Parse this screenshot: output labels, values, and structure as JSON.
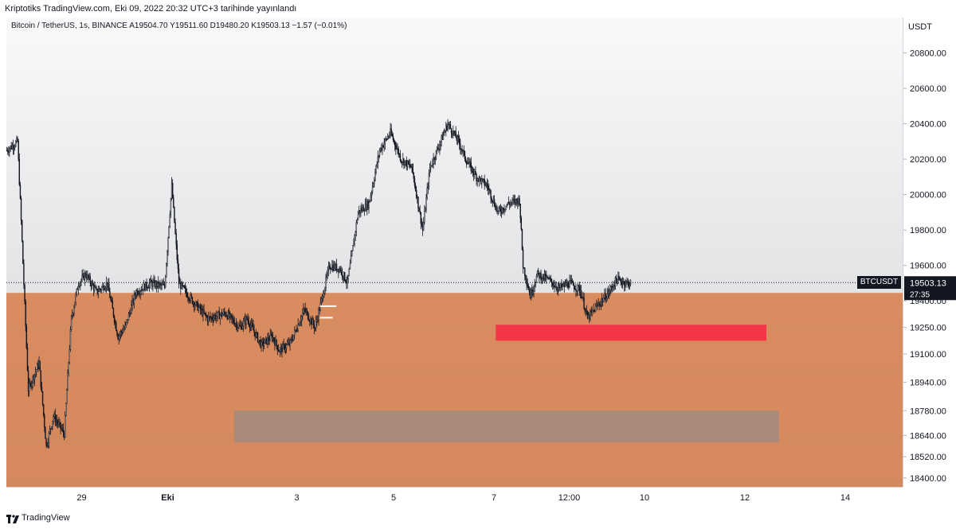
{
  "header": {
    "published_line": "Kriptotiks TradingView.com, Eki 09, 2022 20:32 UTC+3 tarihinde yayınlandı"
  },
  "legend": {
    "line": "Bitcoin / TetherUS, 1s, BINANCE  A19504.70  Y19511.60  D19480.20  K19503.13  −1.57 (−0.01%)"
  },
  "footer": {
    "brand": "TradingView"
  },
  "chart_data": {
    "type": "candlestick",
    "symbol_label": "BTCUSDT",
    "currency_label": "USDT",
    "last_price": 19503.13,
    "last_price_label": "19503.13",
    "countdown_label": "27:35",
    "ylim": [
      18350,
      21000
    ],
    "price_ticks": [
      "18400.00",
      "18520.00",
      "18640.00",
      "18780.00",
      "18940.00",
      "19100.00",
      "19250.00",
      "19400.00",
      "19600.00",
      "19800.00",
      "20000.00",
      "20200.00",
      "20400.00",
      "20600.00",
      "20800.00"
    ],
    "time_ticks": [
      {
        "label": "29",
        "index": 21,
        "bold": false
      },
      {
        "label": "Eki",
        "index": 45,
        "bold": true
      },
      {
        "label": "3",
        "index": 81,
        "bold": false
      },
      {
        "label": "5",
        "index": 108,
        "bold": false
      },
      {
        "label": "7",
        "index": 136,
        "bold": false
      },
      {
        "label": "12:00",
        "index": 157,
        "bold": false
      },
      {
        "label": "10",
        "index": 178,
        "bold": false
      },
      {
        "label": "12",
        "index": 206,
        "bold": false
      },
      {
        "label": "14",
        "index": 234,
        "bold": false
      }
    ],
    "x_slots": 250,
    "path_anchors": [
      [
        0,
        20250
      ],
      [
        3,
        20300
      ],
      [
        4,
        19850
      ],
      [
        6,
        18900
      ],
      [
        9,
        19050
      ],
      [
        11,
        18580
      ],
      [
        13,
        18750
      ],
      [
        16,
        18650
      ],
      [
        18,
        19300
      ],
      [
        20,
        19500
      ],
      [
        22,
        19550
      ],
      [
        25,
        19450
      ],
      [
        28,
        19500
      ],
      [
        31,
        19200
      ],
      [
        33,
        19250
      ],
      [
        36,
        19450
      ],
      [
        40,
        19500
      ],
      [
        44,
        19480
      ],
      [
        46,
        20050
      ],
      [
        48,
        19500
      ],
      [
        51,
        19420
      ],
      [
        56,
        19300
      ],
      [
        61,
        19330
      ],
      [
        65,
        19250
      ],
      [
        67,
        19300
      ],
      [
        71,
        19150
      ],
      [
        74,
        19200
      ],
      [
        76,
        19120
      ],
      [
        79,
        19160
      ],
      [
        83,
        19350
      ],
      [
        86,
        19250
      ],
      [
        88,
        19420
      ],
      [
        90,
        19600
      ],
      [
        93,
        19580
      ],
      [
        95,
        19500
      ],
      [
        98,
        19900
      ],
      [
        101,
        19950
      ],
      [
        104,
        20250
      ],
      [
        107,
        20350
      ],
      [
        110,
        20200
      ],
      [
        113,
        20150
      ],
      [
        116,
        19800
      ],
      [
        118,
        20150
      ],
      [
        121,
        20300
      ],
      [
        123,
        20400
      ],
      [
        126,
        20300
      ],
      [
        128,
        20200
      ],
      [
        131,
        20100
      ],
      [
        134,
        20050
      ],
      [
        137,
        19900
      ],
      [
        140,
        19950
      ],
      [
        143,
        19970
      ],
      [
        144,
        19600
      ],
      [
        146,
        19430
      ],
      [
        148,
        19550
      ],
      [
        151,
        19520
      ],
      [
        154,
        19470
      ],
      [
        157,
        19500
      ],
      [
        160,
        19460
      ],
      [
        162,
        19300
      ],
      [
        165,
        19380
      ],
      [
        168,
        19450
      ],
      [
        170,
        19520
      ],
      [
        173,
        19500
      ],
      [
        174,
        19503
      ]
    ],
    "zones": [
      {
        "name": "orange-support-zone",
        "from_index": 0,
        "to_index": 250,
        "y_top": 19445,
        "y_bottom": 18350,
        "color": "#d5733a",
        "opacity": 0.78
      },
      {
        "name": "red-zone",
        "from_index": 136.5,
        "to_index": 212,
        "y_top": 19265,
        "y_bottom": 19175,
        "color": "#f23645",
        "opacity": 1
      },
      {
        "name": "gray-zone",
        "from_index": 63.5,
        "to_index": 215.5,
        "y_top": 18780,
        "y_bottom": 18600,
        "color": "#9e8a86",
        "opacity": 0.75
      }
    ],
    "marker_lines": [
      {
        "from_index": 87.5,
        "to_index": 92,
        "price": 19370
      },
      {
        "from_index": 87.5,
        "to_index": 91,
        "price": 19305
      }
    ],
    "colors": {
      "candle": "#131722",
      "background_top": "#f9f9fa",
      "background_bottom": "#d3d4d7",
      "price_label_bg": "#131722",
      "price_label_text": "#ffffff"
    }
  }
}
